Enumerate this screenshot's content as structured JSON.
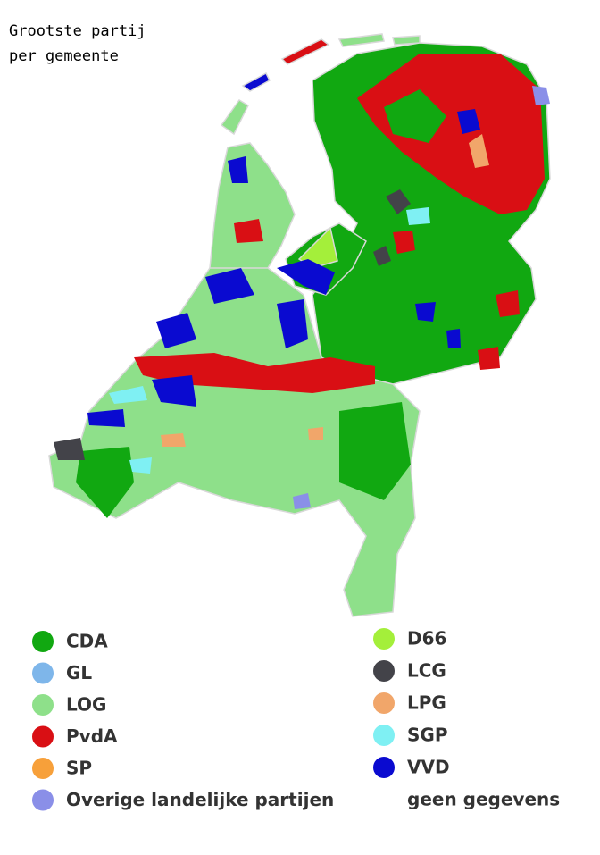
{
  "title_lines": [
    "Grootste partij",
    "per gemeente"
  ],
  "legend": {
    "left": [
      {
        "label": "CDA",
        "color": "#11a811"
      },
      {
        "label": "GL",
        "color": "#7eb6ea"
      },
      {
        "label": "LOG",
        "color": "#8ee08a"
      },
      {
        "label": "PvdA",
        "color": "#d90f14"
      },
      {
        "label": "SP",
        "color": "#f7a03a"
      },
      {
        "label": "Overige landelijke partijen",
        "color": "#8a8fe8"
      }
    ],
    "right": [
      {
        "label": "D66",
        "color": "#a4ef3a"
      },
      {
        "label": "LCG",
        "color": "#434349"
      },
      {
        "label": "LPG",
        "color": "#f1a66a"
      },
      {
        "label": "SGP",
        "color": "#7ff0f3"
      },
      {
        "label": "VVD",
        "color": "#0a0ad0"
      },
      {
        "label": "geen gegevens",
        "color": "#ffffff"
      }
    ]
  }
}
